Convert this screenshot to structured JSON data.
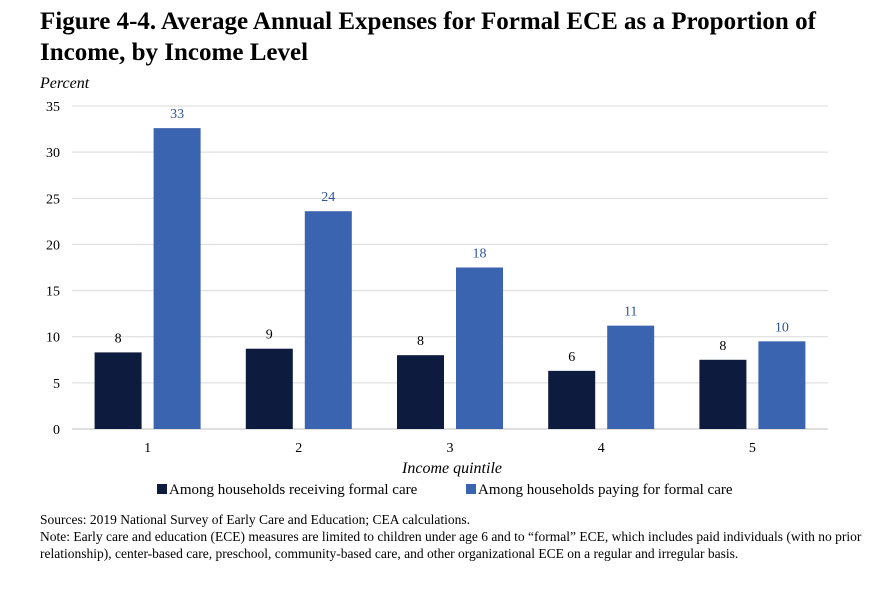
{
  "title": "Figure 4-4. Average Annual Expenses for Formal ECE as a Proportion of Income, by Income Level",
  "sources": "Sources: 2019 National Survey of Early Care and Education; CEA calculations.",
  "note": "Note: Early care and education (ECE) measures are limited to children under age 6 and to “formal” ECE, which includes paid individuals (with no prior relationship), center-based care, preschool, community-based care, and other organizational ECE on a regular and irregular basis.",
  "chart_data": {
    "type": "bar",
    "ylabel": "Percent",
    "xlabel": "Income quintile",
    "ylim": [
      0,
      35
    ],
    "yticks": [
      0,
      5,
      10,
      15,
      20,
      25,
      30,
      35
    ],
    "grid": true,
    "legend": "bottom",
    "categories": [
      "1",
      "2",
      "3",
      "4",
      "5"
    ],
    "series": [
      {
        "name": "Among households receiving formal care",
        "values": [
          8.3,
          8.7,
          8.0,
          6.3,
          7.5
        ],
        "labels": [
          "8",
          "9",
          "8",
          "6",
          "8"
        ],
        "color": "#0d1b3e",
        "label_color": "#000000"
      },
      {
        "name": "Among households paying for formal care",
        "values": [
          32.6,
          23.6,
          17.5,
          11.2,
          9.5
        ],
        "labels": [
          "33",
          "24",
          "18",
          "11",
          "10"
        ],
        "color": "#3a63b0",
        "label_color": "#2e5597"
      }
    ]
  }
}
